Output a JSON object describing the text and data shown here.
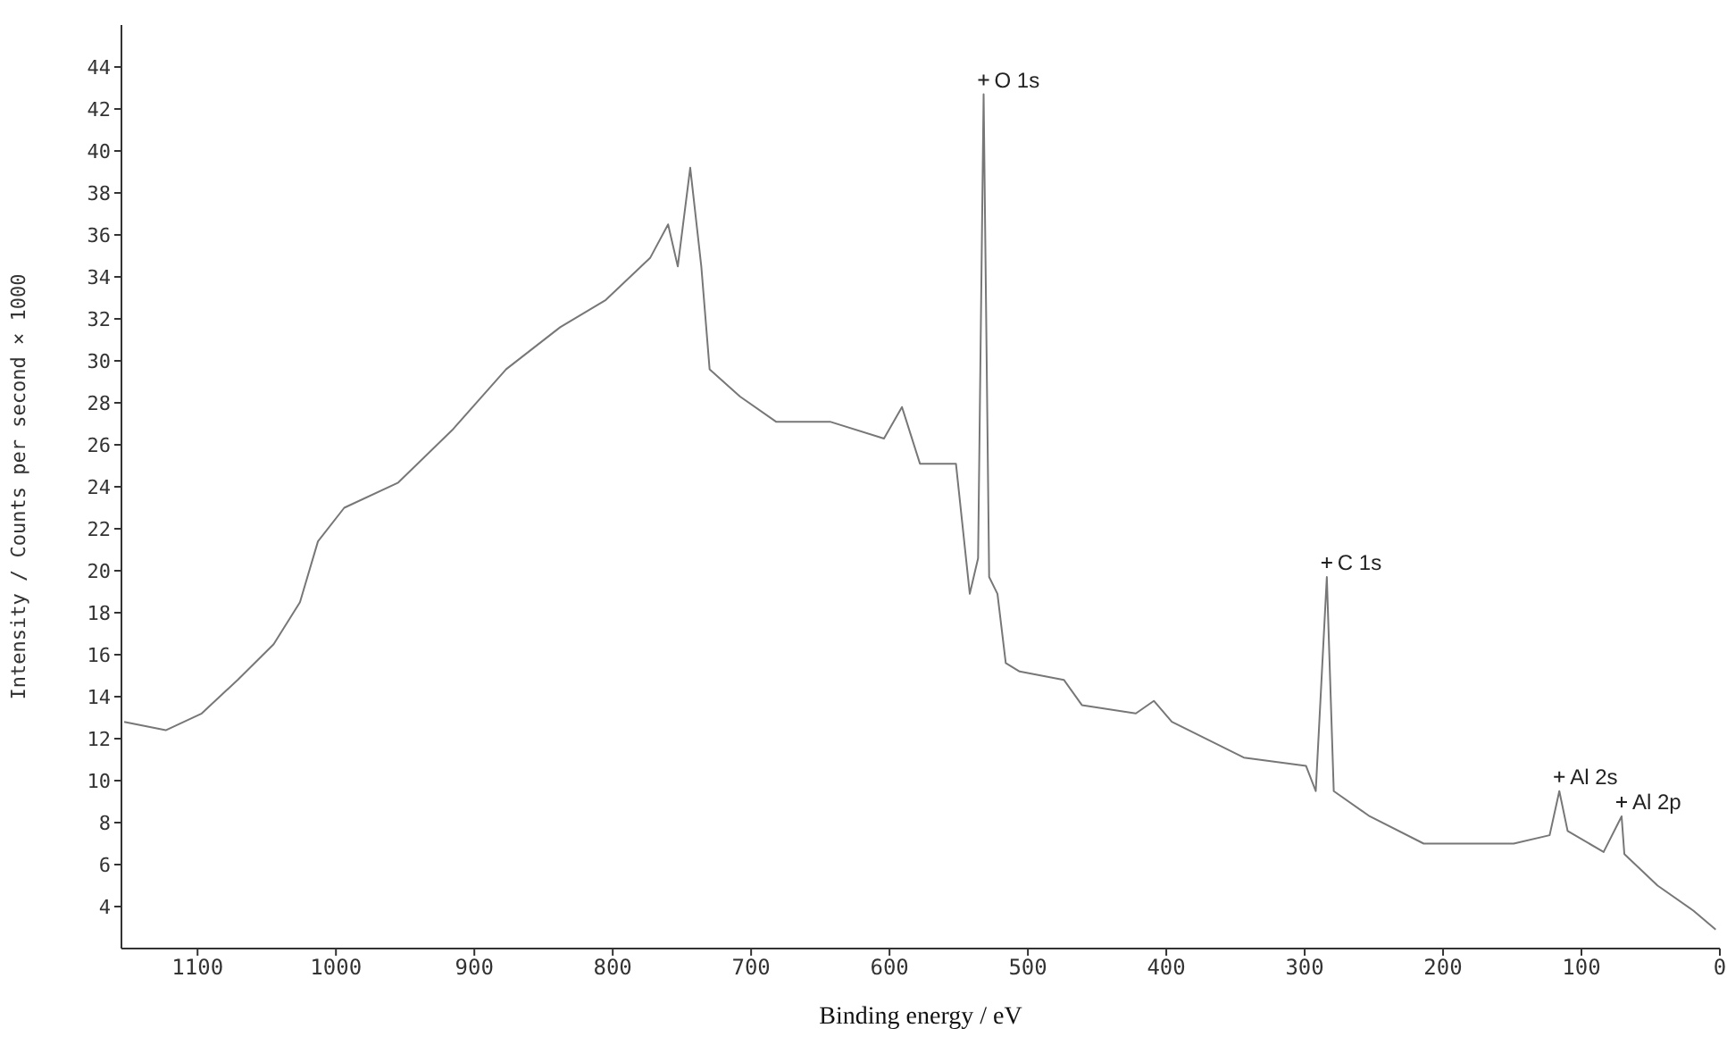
{
  "chart_data": {
    "type": "line",
    "xlabel": "Binding energy / eV",
    "ylabel": "Intensity / Counts per second × 1000",
    "x": [
      1153,
      1123,
      1097,
      1071,
      1045,
      1026,
      1013,
      994,
      955,
      916,
      877,
      838,
      805,
      773,
      760,
      753,
      744,
      736,
      730,
      708,
      682,
      643,
      604,
      591,
      578,
      552,
      542,
      536,
      532,
      528,
      522,
      516,
      506,
      474,
      461,
      422,
      409,
      396,
      344,
      299,
      292,
      284,
      279,
      253,
      214,
      149,
      123,
      116,
      110,
      84,
      71,
      69,
      45,
      19,
      3
    ],
    "series": [
      {
        "color": "#777777",
        "values": [
          12.8,
          12.4,
          13.2,
          14.8,
          16.5,
          18.5,
          21.4,
          23,
          24.2,
          26.7,
          29.6,
          31.6,
          32.9,
          34.9,
          36.5,
          34.5,
          39.2,
          34.5,
          29.6,
          28.3,
          27.1,
          27.1,
          26.3,
          27.8,
          25.1,
          25.1,
          18.9,
          20.6,
          42.7,
          19.7,
          18.9,
          15.6,
          15.2,
          14.8,
          13.6,
          13.2,
          13.8,
          12.8,
          11.1,
          10.7,
          9.5,
          19.7,
          9.5,
          8.3,
          7,
          7,
          7.4,
          9.5,
          7.6,
          6.6,
          8.3,
          6.5,
          5,
          3.8,
          2.9
        ]
      }
    ],
    "xlim": [
      1155,
      0
    ],
    "xticks": [
      1100,
      1000,
      900,
      800,
      700,
      600,
      500,
      400,
      300,
      200,
      100,
      0
    ],
    "ylim": [
      2,
      46
    ],
    "yticks": [
      4,
      6,
      8,
      10,
      12,
      14,
      16,
      18,
      20,
      22,
      24,
      26,
      28,
      30,
      32,
      34,
      36,
      38,
      40,
      42,
      44
    ],
    "grid": false,
    "legend": false,
    "marker": "none",
    "line_style": "solid",
    "annotations": [
      {
        "text": "O 1s",
        "x": 532,
        "y": 42.7
      },
      {
        "text": "C 1s",
        "x": 284,
        "y": 19.7
      },
      {
        "text": "Al 2s",
        "x": 116,
        "y": 9.5
      },
      {
        "text": "Al 2p",
        "x": 71,
        "y": 8.3
      }
    ]
  }
}
